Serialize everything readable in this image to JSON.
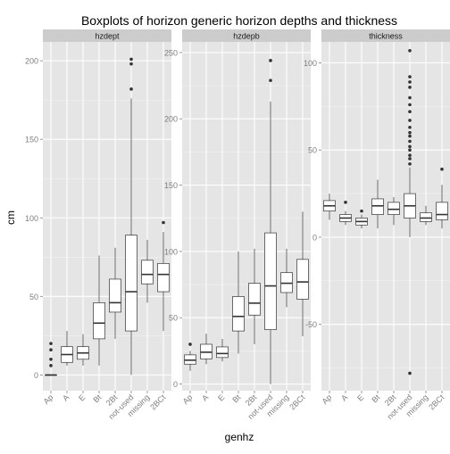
{
  "chart_data": {
    "type": "boxplot",
    "title": "Boxplots of horizon generic horizon depths and thickness",
    "xlabel": "genhz",
    "ylabel": "cm",
    "categories": [
      "Ap",
      "A",
      "E",
      "Bt",
      "2Bt",
      "not-used",
      "missing",
      "2BCt"
    ],
    "grid": true,
    "legend": "none",
    "colors": {
      "panel_bg": "#e5e5e5",
      "strip_bg": "#cccccc",
      "grid_major": "#ffffff",
      "grid_minor": "#f2f2f2",
      "box_fill": "#ffffff",
      "line": "#333333",
      "axis_text": "#7f7f7f"
    },
    "panels": [
      {
        "label": "hzdept",
        "ylim": [
          -10,
          212
        ],
        "yticks": [
          0,
          50,
          100,
          150,
          200
        ],
        "boxes": [
          {
            "category": "Ap",
            "low": 0,
            "q1": 0,
            "median": 0,
            "q3": 0,
            "high": 0,
            "outliers": [
              6,
              10,
              16,
              20
            ]
          },
          {
            "category": "A",
            "low": 6,
            "q1": 8,
            "median": 13,
            "q3": 18,
            "high": 28,
            "outliers": []
          },
          {
            "category": "E",
            "low": 6,
            "q1": 10,
            "median": 14,
            "q3": 18,
            "high": 26,
            "outliers": []
          },
          {
            "category": "Bt",
            "low": 6,
            "q1": 23,
            "median": 33,
            "q3": 46,
            "high": 76,
            "outliers": []
          },
          {
            "category": "2Bt",
            "low": 23,
            "q1": 40,
            "median": 46,
            "q3": 61,
            "high": 81,
            "outliers": []
          },
          {
            "category": "not-used",
            "low": 0,
            "q1": 28,
            "median": 53,
            "q3": 89,
            "high": 176,
            "outliers": [
              182,
              198,
              201
            ]
          },
          {
            "category": "missing",
            "low": 46,
            "q1": 58,
            "median": 64,
            "q3": 73,
            "high": 86,
            "outliers": []
          },
          {
            "category": "2BCt",
            "low": 28,
            "q1": 53,
            "median": 64,
            "q3": 71,
            "high": 91,
            "outliers": [
              97
            ]
          }
        ]
      },
      {
        "label": "hzdepb",
        "ylim": [
          -5,
          258
        ],
        "yticks": [
          0,
          50,
          100,
          150,
          200,
          250
        ],
        "boxes": [
          {
            "category": "Ap",
            "low": 10,
            "q1": 15,
            "median": 18,
            "q3": 22,
            "high": 25,
            "outliers": [
              30
            ]
          },
          {
            "category": "A",
            "low": 15,
            "q1": 19,
            "median": 24,
            "q3": 30,
            "high": 38,
            "outliers": []
          },
          {
            "category": "E",
            "low": 17,
            "q1": 20,
            "median": 23,
            "q3": 28,
            "high": 34,
            "outliers": []
          },
          {
            "category": "Bt",
            "low": 23,
            "q1": 40,
            "median": 51,
            "q3": 66,
            "high": 100,
            "outliers": []
          },
          {
            "category": "2Bt",
            "low": 30,
            "q1": 52,
            "median": 61,
            "q3": 76,
            "high": 102,
            "outliers": []
          },
          {
            "category": "not-used",
            "low": 0,
            "q1": 41,
            "median": 74,
            "q3": 114,
            "high": 213,
            "outliers": [
              229,
              244
            ]
          },
          {
            "category": "missing",
            "low": 58,
            "q1": 69,
            "median": 76,
            "q3": 84,
            "high": 102,
            "outliers": []
          },
          {
            "category": "2BCt",
            "low": 36,
            "q1": 64,
            "median": 77,
            "q3": 94,
            "high": 130,
            "outliers": []
          }
        ]
      },
      {
        "label": "thickness",
        "ylim": [
          -88,
          112
        ],
        "yticks": [
          -50,
          0,
          50,
          100
        ],
        "boxes": [
          {
            "category": "Ap",
            "low": 10,
            "q1": 15,
            "median": 18,
            "q3": 21,
            "high": 25,
            "outliers": []
          },
          {
            "category": "A",
            "low": 7,
            "q1": 9,
            "median": 11,
            "q3": 13,
            "high": 15,
            "outliers": [
              20
            ]
          },
          {
            "category": "E",
            "low": 5,
            "q1": 7,
            "median": 9,
            "q3": 11,
            "high": 13,
            "outliers": [
              15
            ]
          },
          {
            "category": "Bt",
            "low": 5,
            "q1": 13,
            "median": 18,
            "q3": 22,
            "high": 33,
            "outliers": []
          },
          {
            "category": "2Bt",
            "low": 7,
            "q1": 13,
            "median": 16,
            "q3": 20,
            "high": 23,
            "outliers": []
          },
          {
            "category": "not-used",
            "low": 0,
            "q1": 11,
            "median": 18,
            "q3": 25,
            "high": 40,
            "outliers": [
              42,
              45,
              47,
              50,
              52,
              55,
              58,
              60,
              63,
              67,
              72,
              76,
              80,
              86,
              89,
              92,
              107,
              -78
            ]
          },
          {
            "category": "missing",
            "low": 7,
            "q1": 9,
            "median": 11,
            "q3": 14,
            "high": 18,
            "outliers": []
          },
          {
            "category": "2BCt",
            "low": 5,
            "q1": 10,
            "median": 13,
            "q3": 20,
            "high": 30,
            "outliers": [
              39
            ]
          }
        ]
      }
    ]
  }
}
